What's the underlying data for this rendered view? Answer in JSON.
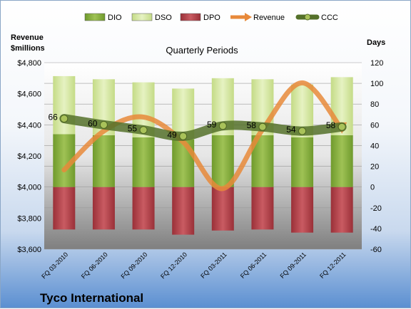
{
  "chart_data": {
    "type": "bar",
    "title": "Quarterly Periods",
    "company": "Tyco International",
    "ylabel_left": [
      "Revenue",
      "$millions"
    ],
    "ylabel_right": "Days",
    "categories": [
      "FQ 03-2010",
      "FQ 06-2010",
      "FQ 09-2010",
      "FQ 12-2010",
      "FQ 03-2011",
      "FQ 06-2011",
      "FQ 09-2011",
      "FQ 12-2011"
    ],
    "ylim_left": [
      3600,
      4800
    ],
    "ylim_right": [
      -60,
      120
    ],
    "left_ticks": [
      "$3,600",
      "$3,800",
      "$4,000",
      "$4,200",
      "$4,400",
      "$4,600",
      "$4,800"
    ],
    "right_ticks": [
      "-60",
      "-40",
      "-20",
      "0",
      "20",
      "40",
      "60",
      "80",
      "100",
      "120"
    ],
    "series": [
      {
        "name": "DIO",
        "axis": "right",
        "kind": "stacked-bar",
        "color": "#8db23f",
        "values": [
          51,
          50,
          48,
          46,
          50,
          50,
          48,
          50
        ]
      },
      {
        "name": "DSO",
        "axis": "right",
        "kind": "stacked-bar",
        "color": "#d8e8a8",
        "values": [
          56,
          54,
          53,
          49,
          55,
          54,
          51,
          56
        ]
      },
      {
        "name": "DPO",
        "axis": "right",
        "kind": "stacked-bar",
        "color": "#b9474e",
        "values": [
          -41,
          -41,
          -41,
          -46,
          -42,
          -41,
          -44,
          -44
        ]
      },
      {
        "name": "Revenue",
        "axis": "left",
        "kind": "line",
        "color": "#e8893a",
        "values": [
          4110,
          4360,
          4450,
          4290,
          3990,
          4370,
          4670,
          4370
        ]
      },
      {
        "name": "CCC",
        "axis": "right",
        "kind": "line",
        "color": "#55712a",
        "values": [
          66,
          60,
          55,
          49,
          59,
          58,
          54,
          58
        ]
      }
    ],
    "data_labels": [
      "66",
      "60",
      "55",
      "49",
      "59",
      "58",
      "54",
      "58"
    ],
    "grid": true,
    "legend_position": "top"
  }
}
